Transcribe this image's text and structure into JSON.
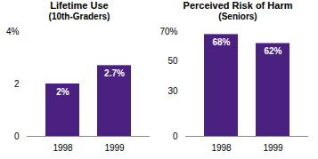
{
  "chart_data": [
    {
      "type": "bar",
      "title": "Lifetime Use",
      "subtitle": "(10th-Graders)",
      "categories": [
        "1998",
        "1999"
      ],
      "values": [
        2.0,
        2.7
      ],
      "value_labels": [
        "2%",
        "2.7%"
      ],
      "data_labels": true,
      "color": "#4a2080",
      "ylim": [
        0,
        4
      ],
      "yticks": [
        0,
        2,
        {
          "value": 4,
          "label": "4%"
        }
      ]
    },
    {
      "type": "bar",
      "title": "Perceived Risk of Harm",
      "subtitle": "(Seniors)",
      "categories": [
        "1998",
        "1999"
      ],
      "values": [
        68,
        62
      ],
      "value_labels": [
        "68%",
        "62%"
      ],
      "data_labels": true,
      "color": "#4a2080",
      "ylim": [
        0,
        70
      ],
      "yticks": [
        0,
        30,
        50,
        {
          "value": 70,
          "label": "70%"
        }
      ]
    }
  ]
}
